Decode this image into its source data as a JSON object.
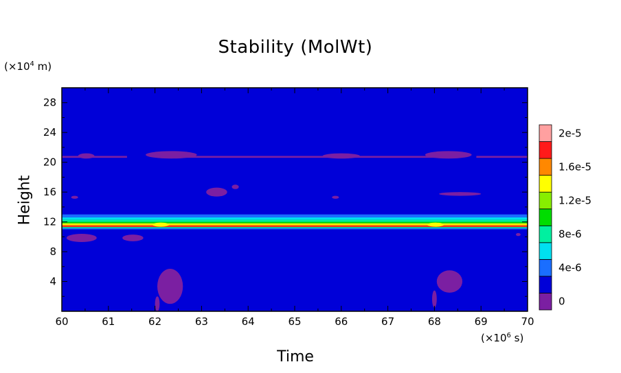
{
  "chart_data": {
    "type": "heatmap",
    "title": "Stability (MolWt)",
    "xlabel": "Time",
    "ylabel": "Height",
    "x_unit": {
      "prefix": "(×10",
      "exp": "6",
      "suffix": " s)"
    },
    "y_unit": {
      "prefix": "(×10",
      "exp": "4",
      "suffix": " m)"
    },
    "xlim": [
      60,
      70
    ],
    "ylim": [
      0,
      30
    ],
    "x_ticks": [
      60,
      61,
      62,
      63,
      64,
      65,
      66,
      67,
      68,
      69,
      70
    ],
    "y_ticks": [
      4,
      8,
      12,
      16,
      20,
      24,
      28
    ],
    "background_level": 1,
    "colorbar": {
      "levels": [
        {
          "label": "0",
          "color": "#7b1fa2"
        },
        {
          "label": "",
          "color": "#0000d8"
        },
        {
          "label": "4e-6",
          "color": "#1a6eff"
        },
        {
          "label": "",
          "color": "#00e0f0"
        },
        {
          "label": "8e-6",
          "color": "#00f0a0"
        },
        {
          "label": "",
          "color": "#00dd00"
        },
        {
          "label": "1.2e-5",
          "color": "#88ee00"
        },
        {
          "label": "",
          "color": "#ffff00"
        },
        {
          "label": "1.6e-5",
          "color": "#ff8800"
        },
        {
          "label": "",
          "color": "#ff1a1a"
        },
        {
          "label": "2e-5",
          "color": "#ffa0a0"
        }
      ]
    },
    "bands": [
      {
        "y": [
          12.6,
          13.0
        ],
        "level": 2,
        "x": [
          60,
          70
        ]
      },
      {
        "y": [
          12.3,
          12.6
        ],
        "level": 3,
        "x": [
          60,
          70
        ]
      },
      {
        "y": [
          12.0,
          12.3
        ],
        "level": 4,
        "x": [
          60,
          70
        ]
      },
      {
        "y": [
          11.8,
          12.0
        ],
        "level": 5,
        "x": [
          60,
          70
        ]
      },
      {
        "y": [
          11.6,
          11.8
        ],
        "level": 7,
        "x": [
          60,
          70
        ]
      },
      {
        "y": [
          11.45,
          11.6
        ],
        "level": 8,
        "x": [
          60,
          70
        ]
      },
      {
        "y": [
          11.3,
          11.45
        ],
        "level": 9,
        "x": [
          60,
          70
        ]
      },
      {
        "y": [
          11.15,
          11.3
        ],
        "level": 4,
        "x": [
          60,
          70
        ]
      },
      {
        "y": [
          11.0,
          11.15
        ],
        "level": 2,
        "x": [
          60,
          70
        ]
      },
      {
        "y": [
          20.6,
          20.85
        ],
        "level": 0,
        "x": [
          60,
          61.4
        ]
      },
      {
        "y": [
          20.6,
          20.85
        ],
        "level": 0,
        "x": [
          62.5,
          68.4
        ]
      },
      {
        "y": [
          20.6,
          20.85
        ],
        "level": 0,
        "x": [
          68.9,
          70
        ]
      }
    ],
    "blobs": [
      {
        "x": [
          60.35,
          60.7
        ],
        "y": [
          20.5,
          21.2
        ],
        "level": 0
      },
      {
        "x": [
          61.8,
          62.9
        ],
        "y": [
          20.5,
          21.5
        ],
        "level": 0
      },
      {
        "x": [
          65.6,
          66.4
        ],
        "y": [
          20.5,
          21.2
        ],
        "level": 0
      },
      {
        "x": [
          67.8,
          68.8
        ],
        "y": [
          20.5,
          21.5
        ],
        "level": 0
      },
      {
        "x": [
          68.1,
          69.0
        ],
        "y": [
          15.5,
          16.0
        ],
        "level": 0
      },
      {
        "x": [
          63.1,
          63.55
        ],
        "y": [
          15.4,
          16.6
        ],
        "level": 0
      },
      {
        "x": [
          63.65,
          63.8
        ],
        "y": [
          16.4,
          17.0
        ],
        "level": 0
      },
      {
        "x": [
          60.2,
          60.35
        ],
        "y": [
          15.1,
          15.5
        ],
        "level": 0
      },
      {
        "x": [
          65.8,
          65.95
        ],
        "y": [
          15.1,
          15.5
        ],
        "level": 0
      },
      {
        "x": [
          60.1,
          60.75
        ],
        "y": [
          9.3,
          10.4
        ],
        "level": 0
      },
      {
        "x": [
          61.3,
          61.75
        ],
        "y": [
          9.4,
          10.3
        ],
        "level": 0
      },
      {
        "x": [
          62.05,
          62.6
        ],
        "y": [
          1.0,
          5.7
        ],
        "level": 0
      },
      {
        "x": [
          62.0,
          62.1
        ],
        "y": [
          0.0,
          2.0
        ],
        "level": 0
      },
      {
        "x": [
          68.05,
          68.6
        ],
        "y": [
          2.5,
          5.5
        ],
        "level": 0
      },
      {
        "x": [
          67.95,
          68.05
        ],
        "y": [
          0.5,
          2.8
        ],
        "level": 0
      },
      {
        "x": [
          69.75,
          69.85
        ],
        "y": [
          10.1,
          10.5
        ],
        "level": 0
      },
      {
        "x": [
          61.95,
          62.3
        ],
        "y": [
          11.35,
          11.9
        ],
        "level": 7
      },
      {
        "x": [
          67.85,
          68.2
        ],
        "y": [
          11.35,
          11.9
        ],
        "level": 7
      }
    ]
  }
}
